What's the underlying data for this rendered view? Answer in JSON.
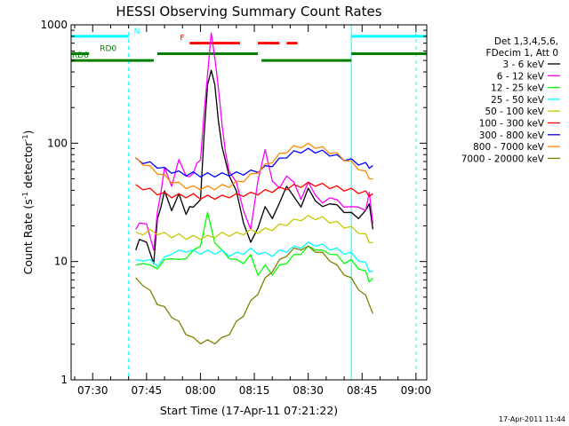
{
  "chart_data": {
    "type": "line",
    "title": "HESSI Observing Summary Count Rates",
    "xlabel": "Start Time (17-Apr-11 07:21:22)",
    "ylabel_main": "Count Rate (s",
    "ylabel_sup1": "-1",
    "ylabel_mid": " detector",
    "ylabel_sup2": "-1",
    "ylabel_end": ")",
    "yscale": "log",
    "ylim": [
      1,
      1000
    ],
    "xlim_minutes": [
      -6,
      93
    ],
    "x_origin": "07:30",
    "x_tick_labels": [
      "07:30",
      "07:45",
      "08:00",
      "08:15",
      "08:30",
      "08:45",
      "09:00"
    ],
    "x_tick_values_min": [
      0,
      15,
      30,
      45,
      60,
      75,
      90
    ],
    "y_tick_labels": [
      "1",
      "10",
      "100",
      "1000"
    ],
    "y_tick_values": [
      1,
      10,
      100,
      1000
    ],
    "legend_header": [
      "Det 1,3,4,5,6,",
      "FDecim 1, Att 0"
    ],
    "legend_position": "right",
    "series": [
      {
        "name": "3 - 6 keV",
        "color": "#000000",
        "x": [
          12,
          13,
          15,
          17,
          18,
          19,
          20,
          22,
          24,
          26,
          27,
          28,
          30,
          31,
          32,
          33,
          34,
          35,
          36,
          38,
          40,
          42,
          44,
          46,
          48,
          50,
          52,
          54,
          56,
          58,
          60,
          62,
          64,
          66,
          68,
          70,
          72,
          74,
          76,
          77,
          78
        ],
        "y": [
          12,
          16,
          14,
          10,
          22,
          30,
          38,
          28,
          36,
          26,
          28,
          30,
          32,
          120,
          300,
          430,
          300,
          160,
          90,
          55,
          38,
          22,
          14,
          20,
          28,
          24,
          30,
          45,
          34,
          30,
          40,
          34,
          28,
          32,
          29,
          27,
          25,
          24,
          26,
          32,
          18
        ]
      },
      {
        "name": "6 - 12 keV",
        "color": "#ff00ff",
        "x": [
          12,
          13,
          15,
          17,
          18,
          19,
          20,
          22,
          24,
          26,
          27,
          28,
          29,
          30,
          31,
          32,
          33,
          34,
          35,
          36,
          37,
          38,
          40,
          42,
          44,
          46,
          48,
          50,
          52,
          54,
          56,
          58,
          60,
          62,
          64,
          66,
          68,
          70,
          72,
          74,
          76,
          77,
          78
        ],
        "y": [
          18,
          22,
          20,
          13,
          25,
          40,
          60,
          45,
          70,
          55,
          50,
          58,
          65,
          75,
          170,
          400,
          820,
          550,
          280,
          150,
          80,
          60,
          45,
          28,
          18,
          50,
          85,
          50,
          40,
          55,
          45,
          35,
          45,
          38,
          30,
          36,
          32,
          30,
          28,
          30,
          26,
          40,
          20
        ]
      },
      {
        "name": "12 - 25 keV",
        "color": "#00ff00",
        "x": [
          12,
          14,
          16,
          18,
          20,
          22,
          24,
          26,
          28,
          30,
          32,
          34,
          36,
          38,
          40,
          42,
          44,
          46,
          48,
          50,
          52,
          54,
          56,
          58,
          60,
          62,
          64,
          66,
          68,
          70,
          72,
          74,
          76,
          77,
          78
        ],
        "y": [
          9,
          10,
          9,
          9,
          10,
          11,
          10,
          11,
          12,
          14,
          25,
          15,
          12,
          11,
          10,
          10,
          11,
          8,
          9,
          8,
          9,
          10,
          11,
          12,
          13,
          13,
          12,
          12,
          11,
          10,
          10,
          9,
          8,
          7,
          7
        ]
      },
      {
        "name": "25 - 50 keV",
        "color": "#00ffff",
        "x": [
          12,
          14,
          16,
          18,
          20,
          22,
          24,
          26,
          28,
          30,
          32,
          34,
          36,
          38,
          40,
          42,
          44,
          46,
          48,
          50,
          52,
          54,
          56,
          58,
          60,
          62,
          64,
          66,
          68,
          70,
          72,
          74,
          76,
          77,
          78
        ],
        "y": [
          10,
          10.5,
          10,
          9.5,
          10.5,
          12,
          12,
          12.5,
          12,
          12,
          12,
          12,
          12,
          11.5,
          11.5,
          12,
          12.5,
          12,
          11.5,
          11.5,
          12,
          12.5,
          13,
          13.5,
          14,
          14,
          13.5,
          13,
          12.5,
          12,
          11.5,
          10.5,
          9.5,
          8.5,
          8
        ]
      },
      {
        "name": "50 - 100 keV",
        "color": "#c8c800",
        "x": [
          12,
          14,
          16,
          18,
          20,
          22,
          24,
          26,
          28,
          30,
          32,
          34,
          36,
          38,
          40,
          42,
          44,
          46,
          48,
          50,
          52,
          54,
          56,
          58,
          60,
          62,
          64,
          66,
          68,
          70,
          72,
          74,
          76,
          77,
          78
        ],
        "y": [
          17,
          17.5,
          18,
          17.5,
          17,
          16.5,
          16.5,
          16,
          16,
          16,
          16,
          16.5,
          17,
          17,
          17,
          17.5,
          18,
          18,
          18.5,
          19,
          20,
          21,
          22,
          23,
          23.5,
          23.5,
          23,
          22,
          21,
          20,
          19,
          18,
          16.5,
          15,
          14
        ]
      },
      {
        "name": "100 - 300 keV",
        "color": "#ff0000",
        "x": [
          12,
          14,
          16,
          18,
          20,
          22,
          24,
          26,
          28,
          30,
          32,
          34,
          36,
          38,
          40,
          42,
          44,
          46,
          48,
          50,
          52,
          54,
          56,
          58,
          60,
          62,
          64,
          66,
          68,
          70,
          72,
          74,
          76,
          77,
          78
        ],
        "y": [
          43,
          42,
          40,
          38,
          37,
          36,
          36,
          36,
          36,
          35,
          35,
          35,
          35,
          36,
          36,
          37,
          37,
          38,
          39,
          40,
          41,
          42,
          43,
          44,
          45,
          45,
          44,
          43,
          42,
          41,
          40,
          39,
          38,
          37,
          36
        ]
      },
      {
        "name": "300 - 800 keV",
        "color": "#0000ff",
        "x": [
          12,
          14,
          16,
          18,
          20,
          22,
          24,
          26,
          28,
          30,
          32,
          34,
          36,
          38,
          40,
          42,
          44,
          46,
          48,
          50,
          52,
          54,
          56,
          58,
          60,
          62,
          64,
          66,
          68,
          70,
          72,
          74,
          76,
          77,
          78
        ],
        "y": [
          72,
          70,
          67,
          64,
          60,
          58,
          56,
          55,
          55,
          54,
          54,
          54,
          54,
          55,
          55,
          56,
          57,
          59,
          62,
          66,
          72,
          78,
          83,
          86,
          87,
          86,
          84,
          81,
          77,
          74,
          71,
          68,
          66,
          64,
          62
        ]
      },
      {
        "name": "800 - 7000 keV",
        "color": "#ff8800",
        "x": [
          12,
          14,
          16,
          18,
          20,
          22,
          24,
          26,
          28,
          30,
          32,
          34,
          36,
          38,
          40,
          42,
          44,
          46,
          48,
          50,
          52,
          54,
          56,
          58,
          60,
          62,
          64,
          66,
          68,
          70,
          72,
          74,
          76,
          77,
          78
        ],
        "y": [
          73,
          68,
          62,
          57,
          52,
          48,
          45,
          43,
          42,
          42,
          42,
          42,
          43,
          44,
          46,
          49,
          53,
          58,
          64,
          71,
          79,
          86,
          92,
          95,
          96,
          94,
          90,
          85,
          80,
          74,
          68,
          62,
          56,
          52,
          48
        ]
      },
      {
        "name": "7000 - 20000 keV",
        "color": "#808000",
        "x": [
          12,
          14,
          16,
          18,
          20,
          22,
          24,
          26,
          28,
          30,
          32,
          34,
          36,
          38,
          40,
          42,
          44,
          46,
          48,
          50,
          52,
          54,
          56,
          58,
          60,
          62,
          64,
          66,
          68,
          70,
          72,
          74,
          76,
          77,
          78
        ],
        "y": [
          7,
          6.5,
          5.5,
          4.5,
          4,
          3.5,
          3,
          2.5,
          2.2,
          2.1,
          2.1,
          2.1,
          2.2,
          2.5,
          3,
          3.6,
          4.5,
          5.5,
          7,
          8.5,
          10,
          11.5,
          12.5,
          13,
          13,
          12.5,
          11.5,
          10.5,
          9,
          8,
          7,
          6,
          5,
          4.5,
          3.5
        ]
      }
    ],
    "flag_bars": [
      {
        "label": "N",
        "color": "#00ffff",
        "y": 800,
        "segments": [
          [
            -6,
            10
          ],
          [
            72,
            93
          ]
        ]
      },
      {
        "label": "F",
        "color": "#ff0000",
        "y": 700,
        "segments": [
          [
            27,
            41
          ],
          [
            46,
            52
          ],
          [
            54,
            57
          ]
        ]
      },
      {
        "label": "RD0",
        "color": "#008000",
        "y": 570,
        "segments": [
          [
            -6,
            -1
          ],
          [
            18,
            46
          ],
          [
            72,
            93
          ]
        ]
      },
      {
        "label": "RD8",
        "color": "#008000",
        "y": 500,
        "segments": [
          [
            -6,
            17
          ],
          [
            47,
            72
          ]
        ]
      }
    ],
    "vertical_lines_solid": {
      "color": "#00ffff",
      "x": [
        -6,
        72
      ]
    },
    "vertical_lines_dashed": {
      "color": "#00ffff",
      "x": [
        10,
        90
      ]
    }
  },
  "timestamp": "17-Apr-2011 11:44"
}
